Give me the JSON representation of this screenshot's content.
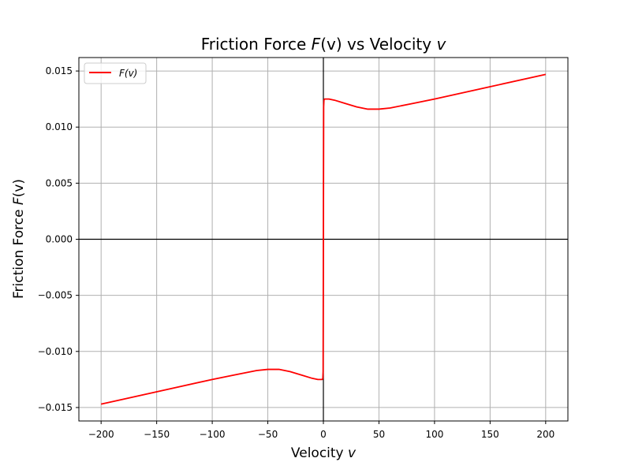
{
  "chart_data": {
    "type": "line",
    "title": {
      "prefix": "Friction Force ",
      "var": "F",
      "mid": "(v)",
      "suffix": " vs Velocity ",
      "tail": "v"
    },
    "xlabel": {
      "prefix": "Velocity ",
      "var": "v"
    },
    "ylabel": {
      "prefix": "Friction Force ",
      "var": "F",
      "suffix": "(v)"
    },
    "xlim": [
      -220,
      220
    ],
    "ylim": [
      -0.0162,
      0.0162
    ],
    "x_ticks": [
      -200,
      -150,
      -100,
      -50,
      0,
      50,
      100,
      150,
      200
    ],
    "x_tick_labels": [
      "−200",
      "−150",
      "−100",
      "−50",
      "0",
      "50",
      "100",
      "150",
      "200"
    ],
    "y_ticks": [
      -0.015,
      -0.01,
      -0.005,
      0.0,
      0.005,
      0.01,
      0.015
    ],
    "y_tick_labels": [
      "−0.015",
      "−0.010",
      "−0.005",
      "0.000",
      "0.005",
      "0.010",
      "0.015"
    ],
    "grid": true,
    "zero_lines": true,
    "legend": {
      "position": "top-left",
      "entries": [
        {
          "label": "F(v)",
          "color": "#ff0000"
        }
      ]
    },
    "series": [
      {
        "name": "F(v)",
        "color": "#ff0000",
        "x": [
          -200,
          -150,
          -100,
          -80,
          -60,
          -50,
          -40,
          -30,
          -20,
          -10,
          -5,
          -3,
          -1,
          -0.5,
          -0.25,
          0,
          0.25,
          0.5,
          1,
          3,
          5,
          10,
          20,
          30,
          40,
          50,
          60,
          80,
          100,
          150,
          200
        ],
        "y": [
          -0.0147,
          -0.0136,
          -0.0125,
          -0.0121,
          -0.0117,
          -0.0116,
          -0.0116,
          -0.0118,
          -0.0121,
          -0.0124,
          -0.0125,
          -0.0125,
          -0.0125,
          -0.0124,
          -0.0118,
          0.0,
          0.0118,
          0.0124,
          0.0125,
          0.0125,
          0.0125,
          0.0124,
          0.0121,
          0.0118,
          0.0116,
          0.0116,
          0.0117,
          0.0121,
          0.0125,
          0.0136,
          0.0147
        ]
      }
    ]
  }
}
